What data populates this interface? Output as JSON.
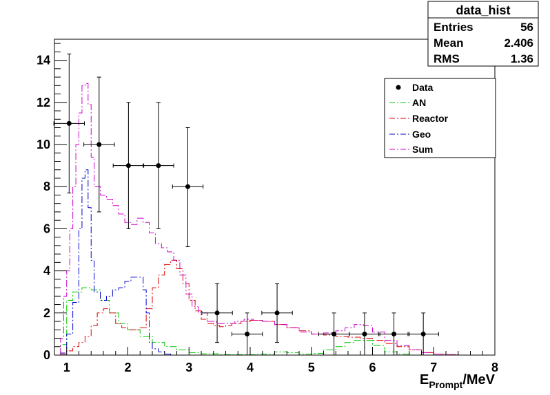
{
  "chart_data": {
    "type": "histogram",
    "xlim": [
      0.8,
      8.0
    ],
    "ylim": [
      0,
      15
    ],
    "x_ticks": [
      1,
      2,
      3,
      4,
      5,
      6,
      7,
      8
    ],
    "y_ticks": [
      0,
      2,
      4,
      6,
      8,
      10,
      12,
      14
    ],
    "xlabel": {
      "main": "E",
      "sub": "Prompt",
      "unit": "/MeV"
    },
    "stats_box": {
      "title": "data_hist",
      "rows": [
        {
          "label": "Entries",
          "value": "56"
        },
        {
          "label": "Mean",
          "value": "2.406"
        },
        {
          "label": "RMS",
          "value": "1.36"
        }
      ]
    },
    "legend": {
      "placement": "top-right",
      "entries": [
        {
          "label": "Data",
          "style": "marker",
          "color": "#000000"
        },
        {
          "label": "AN",
          "style": "line",
          "color": "#00cc00"
        },
        {
          "label": "Reactor",
          "style": "line",
          "color": "#dd0000"
        },
        {
          "label": "Geo",
          "style": "line",
          "color": "#0000cc"
        },
        {
          "label": "Sum",
          "style": "line",
          "color": "#cc00cc"
        }
      ]
    },
    "data_points": [
      {
        "x": 1.04,
        "y": 11,
        "xerr": 0.25,
        "yerr_low": 3.3,
        "yerr_high": 3.3
      },
      {
        "x": 1.53,
        "y": 10,
        "xerr": 0.25,
        "yerr_low": 3.2,
        "yerr_high": 3.2
      },
      {
        "x": 2.01,
        "y": 9,
        "xerr": 0.25,
        "yerr_low": 3.0,
        "yerr_high": 3.0
      },
      {
        "x": 2.5,
        "y": 9,
        "xerr": 0.25,
        "yerr_low": 3.0,
        "yerr_high": 3.0
      },
      {
        "x": 2.98,
        "y": 8,
        "xerr": 0.25,
        "yerr_low": 2.85,
        "yerr_high": 2.8
      },
      {
        "x": 3.46,
        "y": 2,
        "xerr": 0.25,
        "yerr_low": 1.4,
        "yerr_high": 1.4
      },
      {
        "x": 3.95,
        "y": 1,
        "xerr": 0.25,
        "yerr_low": 1.0,
        "yerr_high": 1.0
      },
      {
        "x": 4.44,
        "y": 2,
        "xerr": 0.25,
        "yerr_low": 1.4,
        "yerr_high": 1.4
      },
      {
        "x": 5.37,
        "y": 1,
        "xerr": 0.25,
        "yerr_low": 1.0,
        "yerr_high": 1.0
      },
      {
        "x": 5.87,
        "y": 1,
        "xerr": 0.25,
        "yerr_low": 1.0,
        "yerr_high": 1.0
      },
      {
        "x": 6.35,
        "y": 1,
        "xerr": 0.25,
        "yerr_low": 1.0,
        "yerr_high": 1.0
      },
      {
        "x": 6.83,
        "y": 1,
        "xerr": 0.25,
        "yerr_low": 1.0,
        "yerr_high": 1.0
      }
    ],
    "series": [
      {
        "name": "AN",
        "color": "#00cc00",
        "points": [
          [
            0.9,
            0.5
          ],
          [
            1.0,
            2.6
          ],
          [
            1.1,
            3.0
          ],
          [
            1.25,
            3.2
          ],
          [
            1.4,
            3.1
          ],
          [
            1.55,
            2.6
          ],
          [
            1.7,
            2.0
          ],
          [
            1.85,
            1.5
          ],
          [
            2.0,
            1.2
          ],
          [
            2.2,
            0.9
          ],
          [
            2.4,
            0.6
          ],
          [
            2.6,
            0.4
          ],
          [
            2.8,
            0.25
          ],
          [
            3.0,
            0.12
          ],
          [
            3.2,
            0.06
          ],
          [
            3.5,
            0.02
          ],
          [
            3.8,
            0.02
          ],
          [
            4.1,
            0.05
          ],
          [
            4.4,
            0.15
          ],
          [
            4.6,
            0.12
          ],
          [
            4.8,
            0.05
          ],
          [
            5.0,
            0.08
          ],
          [
            5.2,
            0.25
          ],
          [
            5.4,
            0.4
          ],
          [
            5.55,
            0.6
          ],
          [
            5.7,
            0.7
          ],
          [
            5.85,
            0.7
          ],
          [
            6.0,
            0.45
          ],
          [
            6.2,
            0.15
          ],
          [
            6.4,
            0.05
          ],
          [
            6.6,
            0.0
          ]
        ]
      },
      {
        "name": "Reactor",
        "color": "#dd0000",
        "points": [
          [
            0.9,
            0.05
          ],
          [
            1.0,
            0.2
          ],
          [
            1.1,
            0.4
          ],
          [
            1.2,
            0.6
          ],
          [
            1.3,
            0.9
          ],
          [
            1.4,
            1.4
          ],
          [
            1.5,
            2.0
          ],
          [
            1.6,
            2.2
          ],
          [
            1.7,
            2.0
          ],
          [
            1.8,
            1.5
          ],
          [
            1.9,
            1.3
          ],
          [
            2.0,
            1.2
          ],
          [
            2.1,
            1.2
          ],
          [
            2.2,
            1.3
          ],
          [
            2.3,
            2.2
          ],
          [
            2.4,
            3.2
          ],
          [
            2.5,
            3.8
          ],
          [
            2.6,
            4.3
          ],
          [
            2.7,
            4.5
          ],
          [
            2.8,
            4.1
          ],
          [
            2.9,
            3.4
          ],
          [
            3.0,
            2.6
          ],
          [
            3.1,
            2.1
          ],
          [
            3.2,
            1.7
          ],
          [
            3.3,
            1.5
          ],
          [
            3.4,
            1.4
          ],
          [
            3.5,
            1.35
          ],
          [
            3.6,
            1.4
          ],
          [
            3.7,
            1.5
          ],
          [
            3.85,
            1.6
          ],
          [
            4.0,
            1.65
          ],
          [
            4.2,
            1.6
          ],
          [
            4.4,
            1.45
          ],
          [
            4.6,
            1.3
          ],
          [
            4.8,
            1.15
          ],
          [
            5.0,
            1.0
          ],
          [
            5.2,
            0.95
          ],
          [
            5.4,
            0.9
          ],
          [
            5.6,
            0.85
          ],
          [
            5.8,
            0.8
          ],
          [
            6.0,
            0.7
          ],
          [
            6.2,
            0.55
          ],
          [
            6.4,
            0.4
          ],
          [
            6.6,
            0.25
          ],
          [
            6.8,
            0.12
          ],
          [
            7.0,
            0.05
          ],
          [
            7.2,
            0.02
          ],
          [
            7.4,
            0.0
          ]
        ]
      },
      {
        "name": "Geo",
        "color": "#0000cc",
        "points": [
          [
            0.9,
            0.1
          ],
          [
            1.0,
            1.0
          ],
          [
            1.1,
            2.5
          ],
          [
            1.2,
            6.0
          ],
          [
            1.25,
            8.4
          ],
          [
            1.3,
            8.8
          ],
          [
            1.35,
            7.0
          ],
          [
            1.4,
            4.5
          ],
          [
            1.45,
            3.0
          ],
          [
            1.55,
            2.6
          ],
          [
            1.65,
            2.8
          ],
          [
            1.75,
            3.1
          ],
          [
            1.85,
            3.2
          ],
          [
            1.95,
            3.5
          ],
          [
            2.05,
            3.7
          ],
          [
            2.15,
            3.7
          ],
          [
            2.25,
            3.1
          ],
          [
            2.3,
            2.0
          ],
          [
            2.35,
            0.6
          ],
          [
            2.4,
            0.3
          ],
          [
            2.5,
            0.15
          ],
          [
            2.6,
            0.05
          ],
          [
            2.7,
            0.0
          ]
        ]
      },
      {
        "name": "Sum",
        "color": "#cc00cc",
        "points": [
          [
            0.9,
            0.8
          ],
          [
            0.95,
            2.8
          ],
          [
            1.0,
            4.0
          ],
          [
            1.05,
            6.0
          ],
          [
            1.1,
            8.0
          ],
          [
            1.15,
            10.0
          ],
          [
            1.2,
            11.5
          ],
          [
            1.25,
            12.8
          ],
          [
            1.3,
            12.9
          ],
          [
            1.35,
            11.9
          ],
          [
            1.4,
            9.4
          ],
          [
            1.45,
            8.0
          ],
          [
            1.55,
            7.6
          ],
          [
            1.65,
            7.4
          ],
          [
            1.75,
            7.1
          ],
          [
            1.85,
            6.7
          ],
          [
            1.95,
            6.3
          ],
          [
            2.05,
            6.2
          ],
          [
            2.15,
            6.5
          ],
          [
            2.25,
            6.3
          ],
          [
            2.35,
            5.8
          ],
          [
            2.45,
            5.3
          ],
          [
            2.55,
            5.1
          ],
          [
            2.65,
            4.9
          ],
          [
            2.75,
            4.5
          ],
          [
            2.85,
            3.8
          ],
          [
            2.95,
            2.9
          ],
          [
            3.05,
            2.3
          ],
          [
            3.15,
            2.0
          ],
          [
            3.3,
            1.6
          ],
          [
            3.45,
            1.5
          ],
          [
            3.6,
            1.5
          ],
          [
            3.75,
            1.6
          ],
          [
            3.9,
            1.7
          ],
          [
            4.05,
            1.65
          ],
          [
            4.2,
            1.6
          ],
          [
            4.4,
            1.45
          ],
          [
            4.6,
            1.3
          ],
          [
            4.8,
            1.1
          ],
          [
            5.0,
            1.0
          ],
          [
            5.2,
            1.05
          ],
          [
            5.4,
            1.15
          ],
          [
            5.55,
            1.3
          ],
          [
            5.7,
            1.45
          ],
          [
            5.85,
            1.4
          ],
          [
            6.0,
            1.1
          ],
          [
            6.2,
            0.7
          ],
          [
            6.4,
            0.45
          ],
          [
            6.6,
            0.25
          ],
          [
            6.8,
            0.12
          ],
          [
            7.0,
            0.05
          ],
          [
            7.2,
            0.02
          ],
          [
            7.4,
            0.0
          ]
        ]
      }
    ]
  }
}
